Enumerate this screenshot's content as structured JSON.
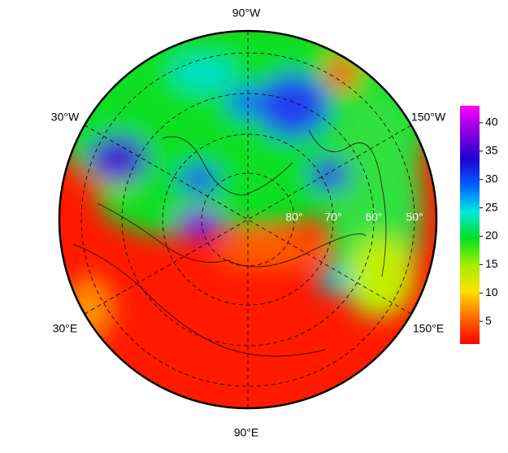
{
  "map": {
    "longitude_labels": [
      "90°W",
      "30°W",
      "150°W",
      "30°E",
      "150°E",
      "90°E"
    ],
    "latitude_labels": [
      "80°",
      "70°",
      "60°",
      "50°"
    ]
  },
  "colorbar": {
    "range": [
      1,
      43
    ],
    "ticks": [
      5,
      10,
      15,
      20,
      25,
      30,
      35,
      40
    ],
    "colors": [
      "#ff0000",
      "#ff6a00",
      "#ffe000",
      "#a0f000",
      "#00e020",
      "#00e8e0",
      "#0060ff",
      "#2000d0",
      "#8800e0",
      "#ff00ff"
    ]
  }
}
